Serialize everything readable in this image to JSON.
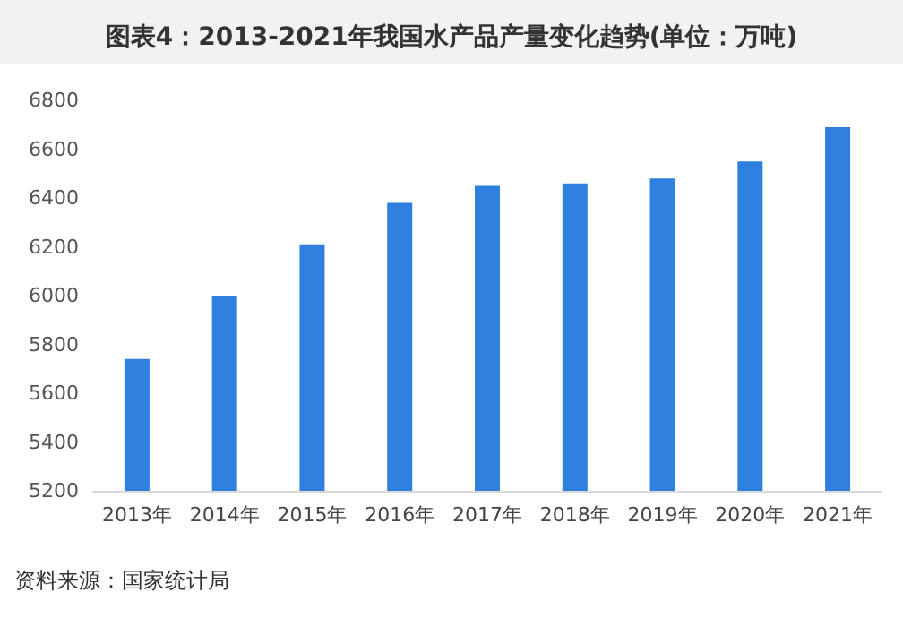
{
  "chart_data": {
    "type": "bar",
    "title": "图表4：2013-2021年我国水产品产量变化趋势(单位：万吨)",
    "categories": [
      "2013年",
      "2014年",
      "2015年",
      "2016年",
      "2017年",
      "2018年",
      "2019年",
      "2020年",
      "2021年"
    ],
    "values": [
      5740,
      6000,
      6210,
      6380,
      6450,
      6460,
      6480,
      6550,
      6690
    ],
    "color": "#2f80de",
    "ylim": [
      5200,
      6800
    ],
    "yticks": [
      5200,
      5400,
      5600,
      5800,
      6000,
      6200,
      6400,
      6600,
      6800
    ],
    "grid": false,
    "annotations": [
      "资料来源：国家统计局"
    ]
  }
}
